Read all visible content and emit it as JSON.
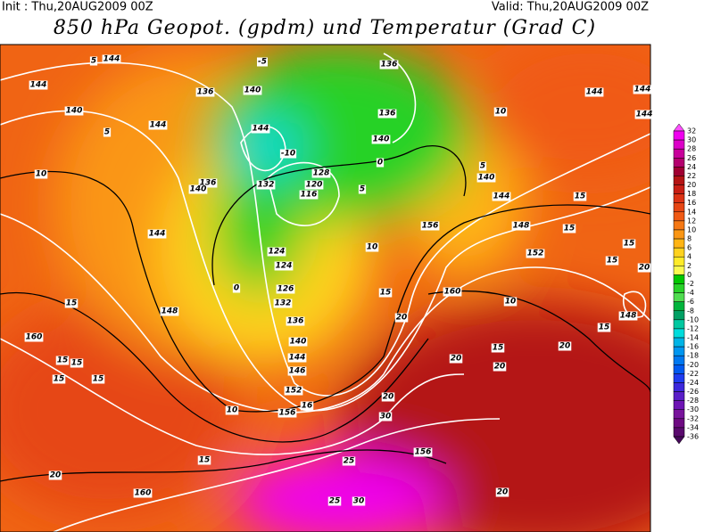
{
  "header": {
    "init": "Init : Thu,20AUG2009 00Z",
    "valid": "Valid: Thu,20AUG2009 00Z",
    "title": "850 hPa Geopot. (gpdm) und Temperatur (Grad C)"
  },
  "colorbar": {
    "levels": [
      32,
      30,
      28,
      26,
      24,
      22,
      20,
      18,
      16,
      14,
      12,
      10,
      8,
      6,
      4,
      2,
      0,
      -2,
      -4,
      -6,
      -8,
      -10,
      -12,
      -14,
      -16,
      -18,
      -20,
      -22,
      -24,
      -26,
      -28,
      -30,
      -32,
      -34,
      -36
    ],
    "colors": [
      "#ff50ff",
      "#f000f0",
      "#dc00c8",
      "#c8009b",
      "#b4006e",
      "#a00032",
      "#b41414",
      "#c81e14",
      "#dc3214",
      "#e64614",
      "#f05a14",
      "#f57814",
      "#fa9614",
      "#ffb414",
      "#ffd21e",
      "#ffeb28",
      "#fafa50",
      "#00c800",
      "#28d228",
      "#50dc50",
      "#00b43c",
      "#00a064",
      "#00c8a0",
      "#00dcdc",
      "#00b4e6",
      "#0096f0",
      "#0078f0",
      "#005af0",
      "#1e3cf0",
      "#3c28dc",
      "#5a1ec8",
      "#6e14b4",
      "#78149b",
      "#6e0a82",
      "#5a0a6e",
      "#460a5a"
    ]
  },
  "map_labels": [
    "5",
    "144",
    "144",
    "140",
    "5",
    "144",
    "10",
    "144",
    "148",
    "15",
    "160",
    "15",
    "15",
    "15",
    "15",
    "10",
    "156",
    "15",
    "20",
    "160",
    "136",
    "140",
    "144",
    "-10",
    "136",
    "132",
    "140",
    "128",
    "120",
    "116",
    "124",
    "124",
    "126",
    "132",
    "136",
    "140",
    "144",
    "146",
    "152",
    "0",
    "-5",
    "136",
    "136",
    "140",
    "0",
    "5",
    "10",
    "15",
    "20",
    "156",
    "160",
    "20",
    "15",
    "20",
    "20",
    "30",
    "16",
    "25",
    "156",
    "25",
    "30",
    "20",
    "10",
    "5",
    "140",
    "144",
    "148",
    "152",
    "15",
    "15",
    "15",
    "15",
    "10",
    "20",
    "15",
    "148",
    "144",
    "144",
    "144",
    "20"
  ]
}
